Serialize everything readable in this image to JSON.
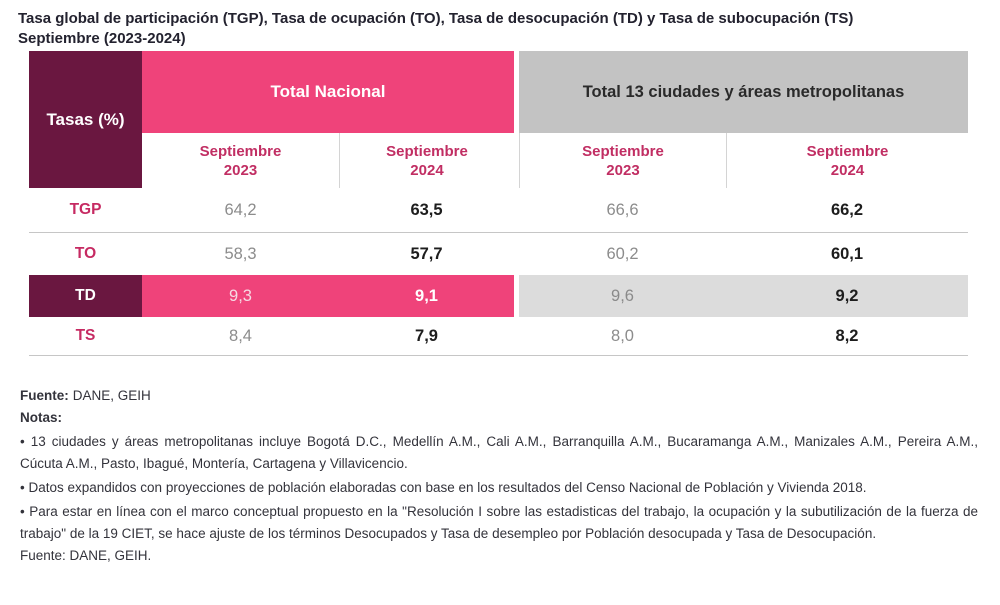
{
  "title": {
    "line1": "Tasa global de participación (TGP), Tasa de ocupación (TO), Tasa de desocupación (TD) y Tasa de subocupación (TS)",
    "line2": "Septiembre (2023-2024)"
  },
  "colors": {
    "maroon": "#6a1740",
    "pink": "#ef437a",
    "gray_band": "#c3c3c3",
    "light_gray_band": "#dcdcdc",
    "crimson_text": "#c62a62",
    "muted_value": "#8c8c8c",
    "dark_value": "#1d1d1d"
  },
  "table": {
    "corner_label": "Tasas (%)",
    "groups": [
      {
        "label": "Total Nacional"
      },
      {
        "label": "Total 13 ciudades y áreas metropolitanas"
      }
    ],
    "period_headers": [
      "Septiembre\n2023",
      "Septiembre\n2024",
      "Septiembre\n2023",
      "Septiembre\n2024"
    ],
    "rows": [
      {
        "label": "TGP",
        "values": [
          "64,2",
          "63,5",
          "66,6",
          "66,2"
        ],
        "highlight": false
      },
      {
        "label": "TO",
        "values": [
          "58,3",
          "57,7",
          "60,2",
          "60,1"
        ],
        "highlight": false
      },
      {
        "label": "TD",
        "values": [
          "9,3",
          "9,1",
          "9,6",
          "9,2"
        ],
        "highlight": true
      },
      {
        "label": "TS",
        "values": [
          "8,4",
          "7,9",
          "8,0",
          "8,2"
        ],
        "highlight": false
      }
    ]
  },
  "notes": {
    "fuente_label": "Fuente:",
    "fuente_value": "DANE, GEIH",
    "notas_label": "Notas:",
    "bullets": [
      "• 13 ciudades y áreas metropolitanas incluye Bogotá D.C., Medellín A.M., Cali A.M., Barranquilla A.M., Bucaramanga A.M., Manizales A.M., Pereira A.M., Cúcuta A.M., Pasto, Ibagué, Montería, Cartagena y Villavicencio.",
      "• Datos expandidos con proyecciones de población elaboradas con base en los resultados del Censo Nacional de Población y Vivienda 2018.",
      "• Para estar en línea con el marco conceptual propuesto en la \"Resolución I sobre las estadisticas del trabajo, la ocupación y la subutilización de la fuerza de trabajo\" de la 19 CIET, se hace ajuste de los términos Desocupados y Tasa de desempleo por Población desocupada y Tasa de Desocupación."
    ],
    "fuente_bottom": "Fuente: DANE, GEIH."
  },
  "chart_data": {
    "type": "table",
    "title": "Tasa global de participación (TGP), Tasa de ocupación (TO), Tasa de desocupación (TD) y Tasa de subocupación (TS) — Septiembre (2023-2024)",
    "column_groups": [
      "Total Nacional",
      "Total 13 ciudades y áreas metropolitanas"
    ],
    "columns": [
      "Tasas (%)",
      "Septiembre 2023 (Nacional)",
      "Septiembre 2024 (Nacional)",
      "Septiembre 2023 (13 ciudades)",
      "Septiembre 2024 (13 ciudades)"
    ],
    "rows": [
      [
        "TGP",
        64.2,
        63.5,
        66.6,
        66.2
      ],
      [
        "TO",
        58.3,
        57.7,
        60.2,
        60.1
      ],
      [
        "TD",
        9.3,
        9.1,
        9.6,
        9.2
      ],
      [
        "TS",
        8.4,
        7.9,
        8.0,
        8.2
      ]
    ],
    "highlighted_row": "TD",
    "source": "DANE, GEIH"
  }
}
